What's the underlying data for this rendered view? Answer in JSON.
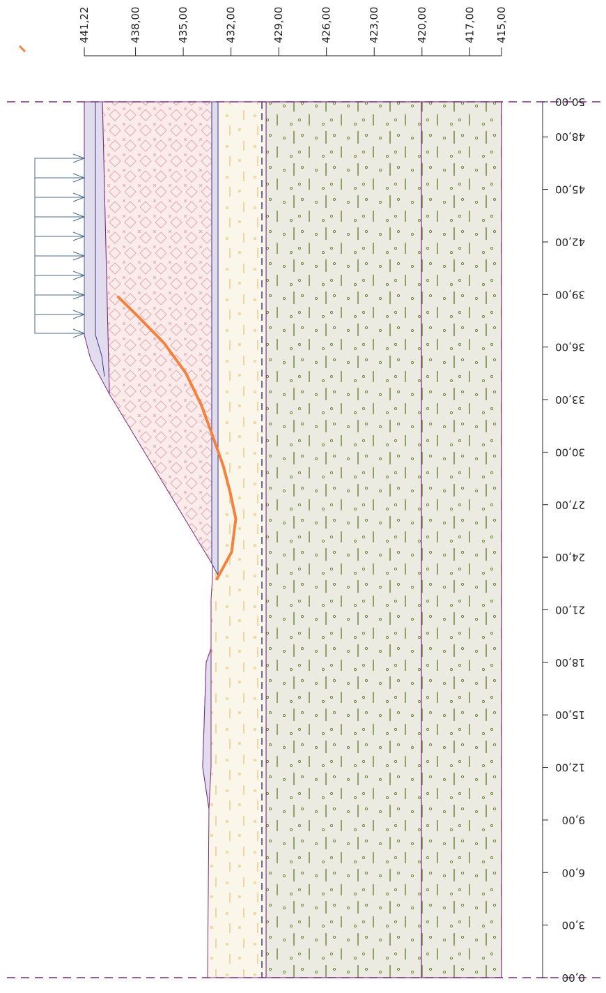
{
  "chart_data": {
    "type": "line",
    "x": [
      439.13,
      437.79,
      436.18,
      434.83,
      433.87,
      433.22,
      432.48,
      432.05,
      431.7,
      431.96,
      432.92
    ],
    "series": [
      {
        "color": "#f5813f",
        "values": [
          38.9,
          37.7,
          36.2,
          34.5,
          32.7,
          31.1,
          29.2,
          27.7,
          26.2,
          24.3,
          22.7
        ]
      }
    ],
    "xlim": [
      441.22,
      415
    ],
    "xticks": [
      {
        "value": 441.22,
        "label": "441,22"
      },
      {
        "value": 438,
        "label": "438,00"
      },
      {
        "value": 435,
        "label": "435,00"
      },
      {
        "value": 432,
        "label": "432,00"
      },
      {
        "value": 429,
        "label": "429,00"
      },
      {
        "value": 426,
        "label": "426,00"
      },
      {
        "value": 423,
        "label": "423,00"
      },
      {
        "value": 420,
        "label": "420,00"
      },
      {
        "value": 417,
        "label": "417,00"
      },
      {
        "value": 415,
        "label": "415,00"
      }
    ],
    "ylim": [
      0,
      50
    ],
    "yticks": [
      {
        "value": 0,
        "label": "0,00"
      },
      {
        "value": 3,
        "label": "3,00"
      },
      {
        "value": 6,
        "label": "6,00"
      },
      {
        "value": 9,
        "label": "9,00"
      },
      {
        "value": 12,
        "label": "12,00"
      },
      {
        "value": 15,
        "label": "15,00"
      },
      {
        "value": 18,
        "label": "18,00"
      },
      {
        "value": 21,
        "label": "21,00"
      },
      {
        "value": 24,
        "label": "24,00"
      },
      {
        "value": 27,
        "label": "27,00"
      },
      {
        "value": 30,
        "label": "30,00"
      },
      {
        "value": 33,
        "label": "33,00"
      },
      {
        "value": 36,
        "label": "36,00"
      },
      {
        "value": 39,
        "label": "39,00"
      },
      {
        "value": 42,
        "label": "42,00"
      },
      {
        "value": 45,
        "label": "45,00"
      },
      {
        "value": 48,
        "label": "48,00"
      },
      {
        "value": 50,
        "label": "50,00"
      }
    ]
  }
}
